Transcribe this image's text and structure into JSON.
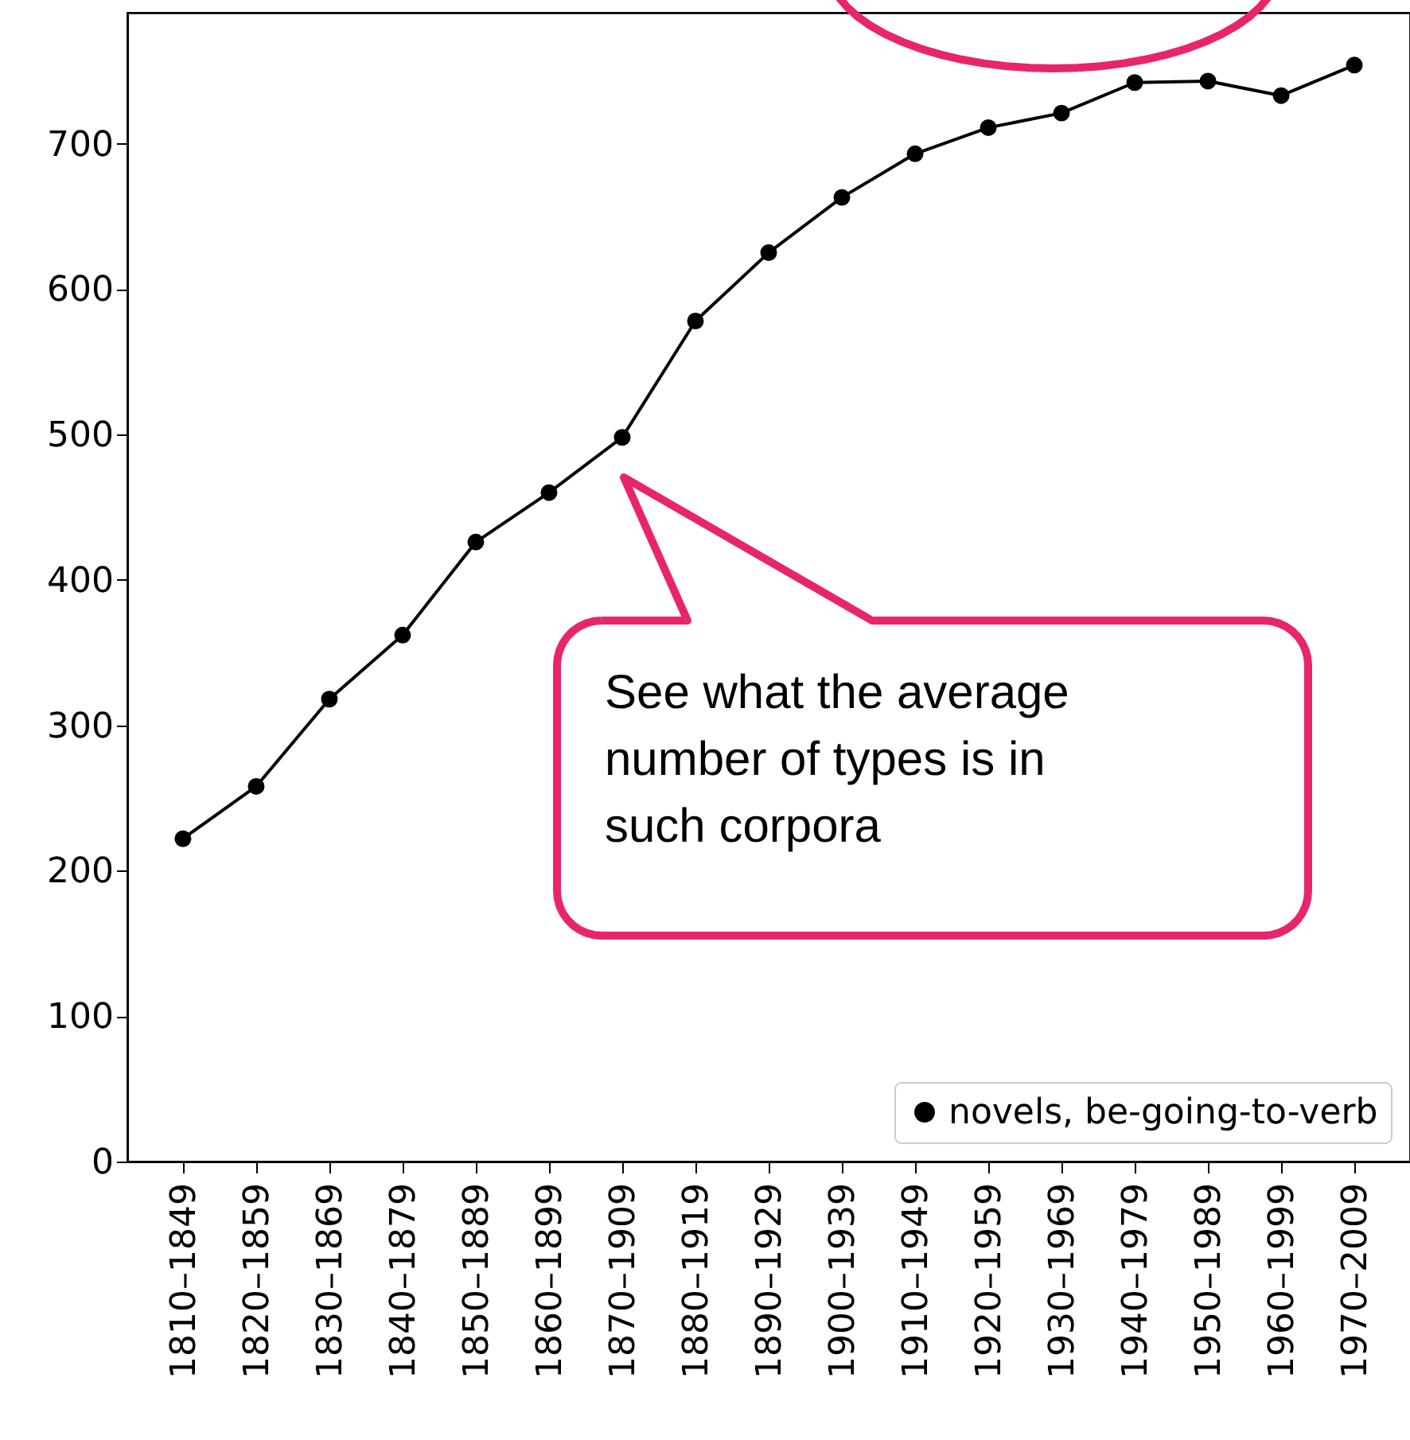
{
  "chart_data": {
    "type": "line",
    "categories": [
      "1810–1849",
      "1820–1859",
      "1830–1869",
      "1840–1879",
      "1850–1889",
      "1860–1899",
      "1870–1909",
      "1880–1919",
      "1890–1929",
      "1900–1939",
      "1910–1949",
      "1920–1959",
      "1930–1969",
      "1940–1979",
      "1950–1989",
      "1960–1999",
      "1970–2009"
    ],
    "series": [
      {
        "name": "novels, be-going-to-verb",
        "color": "#000000",
        "values": [
          222,
          258,
          318,
          362,
          426,
          460,
          498,
          578,
          625,
          663,
          693,
          711,
          721,
          742,
          743,
          733,
          754
        ]
      }
    ],
    "ylim": [
      0,
      790
    ],
    "yticks": [
      0,
      100,
      200,
      300,
      400,
      500,
      600,
      700
    ],
    "marker": "circle",
    "line_style": "solid",
    "grid": false,
    "legend": "bottom right",
    "annotations": [
      "See what the average number of types is in such corpora"
    ]
  }
}
